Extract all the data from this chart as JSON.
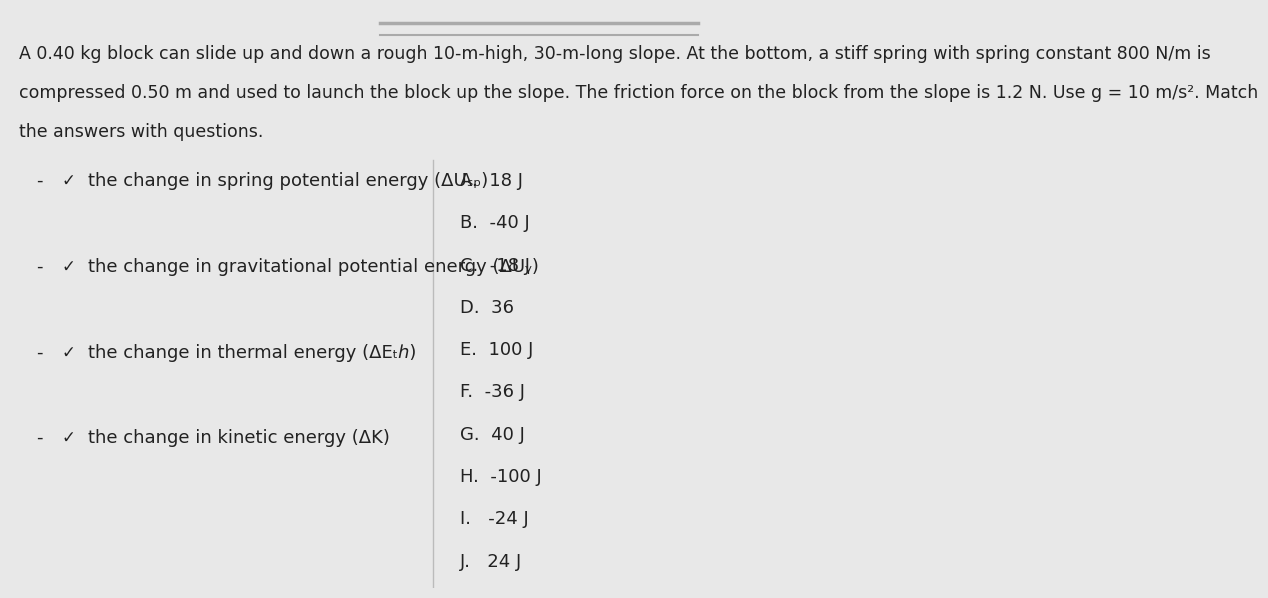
{
  "background_color": "#e8e8e8",
  "title_line1": "A 0.40 kg block can slide up and down a rough 10-m-high, 30-m-long slope. At the bottom, a stiff spring with spring constant 800 N/m is",
  "title_line2": "compressed 0.50 m and used to launch the block up the slope. The friction force on the block from the slope is 1.2 N. Use g = 10 m/s². Match",
  "title_line3": "the answers with questions.",
  "questions": [
    "the change in spring potential energy (ΔUₛₚ)",
    "the change in gravitational potential energy (ΔUᵧ)",
    "the change in thermal energy (ΔEₜℎ)",
    "the change in kinetic energy (ΔK)"
  ],
  "answers": [
    "A.  18 J",
    "B.  -40 J",
    "C.  -18 J",
    "D.  36",
    "E.  100 J",
    "F.  -36 J",
    "G.  40 J",
    "H.  -100 J",
    "I.   -24 J",
    "J.   24 J"
  ],
  "text_color": "#222222",
  "title_fontsize": 12.5,
  "question_fontsize": 13,
  "answer_fontsize": 13,
  "top_bar_color": "#aaaaaa",
  "divider_color": "#bbbbbb"
}
